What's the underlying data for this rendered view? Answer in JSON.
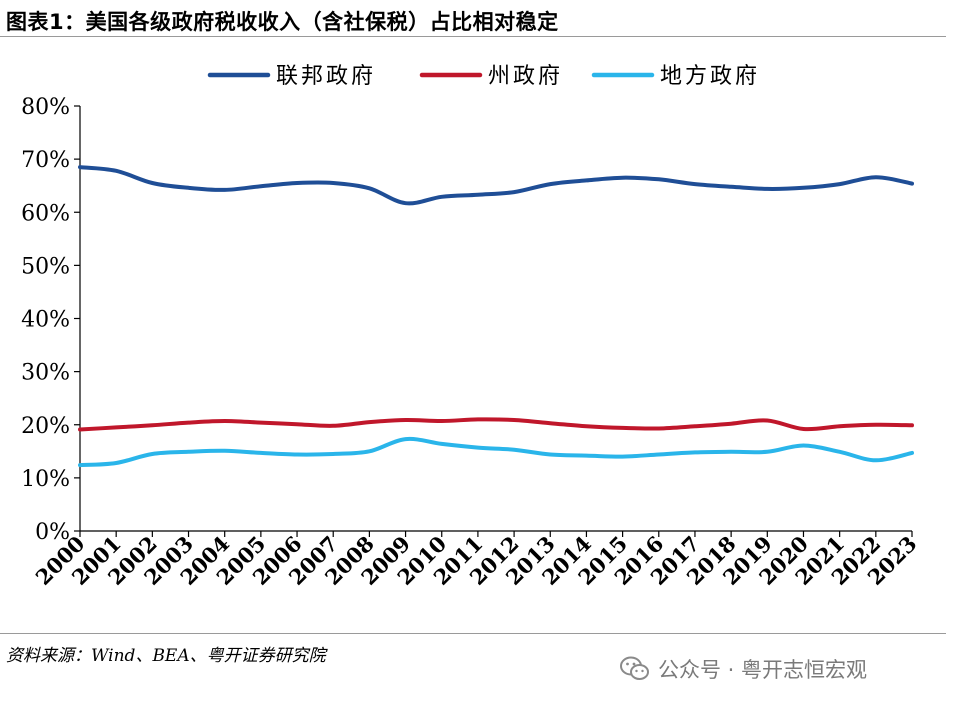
{
  "title": "图表1：美国各级政府税收收入（含社保税）占比相对稳定",
  "source": "资料来源：Wind、BEA、粤开证券研究院",
  "watermark": {
    "icon": "wechat-icon",
    "text": "公众号 · 粤开志恒宏观"
  },
  "chart_data": {
    "type": "line",
    "title": "",
    "xlabel": "",
    "ylabel": "",
    "ylim": [
      0,
      80
    ],
    "y_ticks": [
      "0%",
      "10%",
      "20%",
      "30%",
      "40%",
      "50%",
      "60%",
      "70%",
      "80%"
    ],
    "grid": false,
    "legend_position": "top",
    "x": [
      "2000",
      "2001",
      "2002",
      "2003",
      "2004",
      "2005",
      "2006",
      "2007",
      "2008",
      "2009",
      "2010",
      "2011",
      "2012",
      "2013",
      "2014",
      "2015",
      "2016",
      "2017",
      "2018",
      "2019",
      "2020",
      "2021",
      "2022",
      "2023"
    ],
    "series": [
      {
        "name": "联邦政府",
        "color": "#1f4e96",
        "values": [
          68.5,
          67.8,
          65.5,
          64.6,
          64.2,
          64.9,
          65.5,
          65.5,
          64.5,
          61.7,
          62.9,
          63.3,
          63.8,
          65.3,
          66.0,
          66.5,
          66.2,
          65.3,
          64.8,
          64.4,
          64.6,
          65.3,
          66.6,
          65.4
        ]
      },
      {
        "name": "州政府",
        "color": "#c0172b",
        "values": [
          19.1,
          19.5,
          19.9,
          20.4,
          20.7,
          20.4,
          20.1,
          19.8,
          20.5,
          20.9,
          20.7,
          21.0,
          20.9,
          20.3,
          19.7,
          19.4,
          19.3,
          19.7,
          20.2,
          20.8,
          19.2,
          19.7,
          20.0,
          19.9
        ]
      },
      {
        "name": "地方政府",
        "color": "#2ab5ea",
        "values": [
          12.4,
          12.8,
          14.5,
          14.9,
          15.1,
          14.7,
          14.4,
          14.5,
          15.0,
          17.3,
          16.4,
          15.7,
          15.3,
          14.4,
          14.2,
          14.0,
          14.4,
          14.8,
          14.9,
          14.9,
          16.1,
          14.9,
          13.3,
          14.7
        ]
      }
    ]
  }
}
